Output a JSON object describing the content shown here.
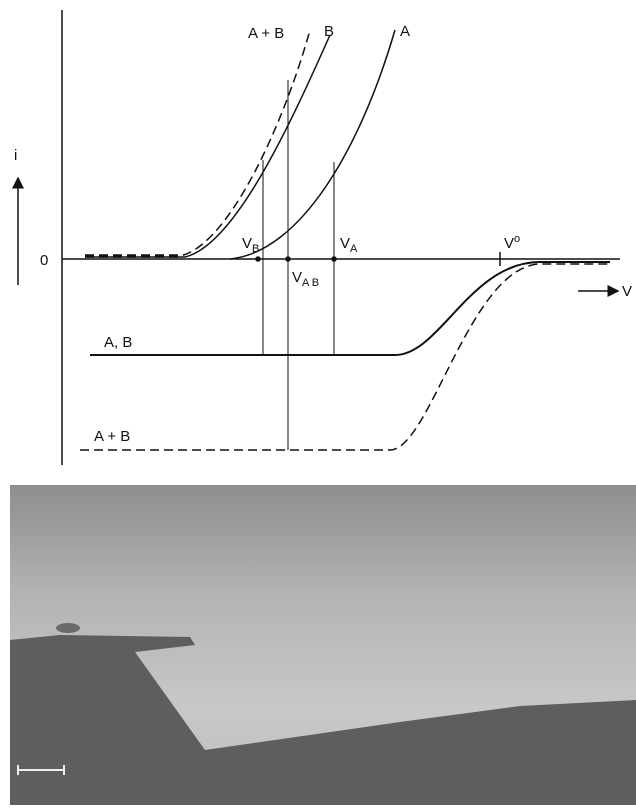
{
  "curve_labels": {
    "sum_top": "A + B",
    "b_top": "B",
    "a_top": "A",
    "sum_bottom": "A + B",
    "ab_bottom": "A, B"
  },
  "axes": {
    "y_label": "i",
    "x_label": "V",
    "origin": "0"
  },
  "potentials": {
    "vb": {
      "main": "V",
      "sub": "B"
    },
    "vab": {
      "main": "V",
      "sub": "A B"
    },
    "va": {
      "main": "V",
      "sub": "A"
    },
    "v0": {
      "main": "V",
      "sup": "o"
    }
  }
}
